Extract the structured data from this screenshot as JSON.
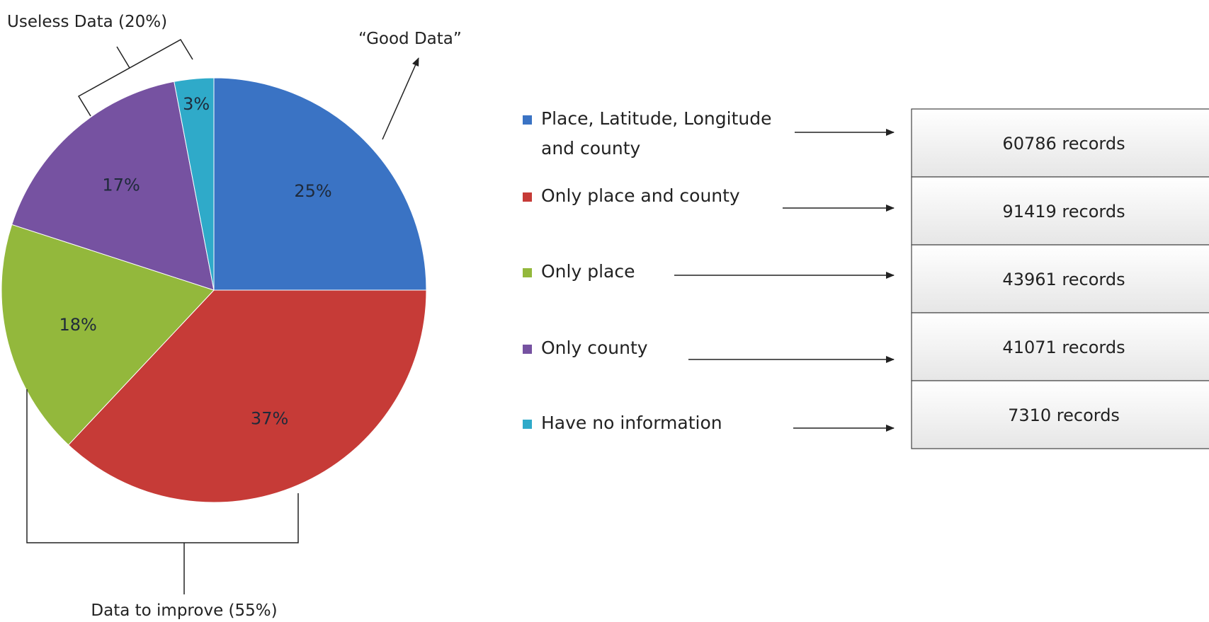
{
  "chart_data": {
    "type": "pie",
    "slices": [
      {
        "label": "Place, Latitude, Longitude and county",
        "legend_lines": [
          "Place, Latitude, Longitude",
          "and county"
        ],
        "percent": 25,
        "percent_label": "25%",
        "records": "60786 records",
        "color": "#3a73c4"
      },
      {
        "label": "Only place and county",
        "legend_lines": [
          "Only place and county"
        ],
        "percent": 37,
        "percent_label": "37%",
        "records": "91419 records",
        "color": "#c63b37"
      },
      {
        "label": "Only place",
        "legend_lines": [
          "Only place"
        ],
        "percent": 18,
        "percent_label": "18%",
        "records": "43961 records",
        "color": "#93b83c"
      },
      {
        "label": "Only county",
        "legend_lines": [
          "Only county"
        ],
        "percent": 17,
        "percent_label": "17%",
        "records": "41071 records",
        "color": "#7652a1"
      },
      {
        "label": "Have no information",
        "legend_lines": [
          "Have no information"
        ],
        "percent": 3,
        "percent_label": "3%",
        "records": "7310 records",
        "color": "#2faac9"
      }
    ],
    "annotations": {
      "good": "“Good Data”",
      "useless": "Useless Data (20%)",
      "improve": "Data to improve (55%)"
    }
  }
}
